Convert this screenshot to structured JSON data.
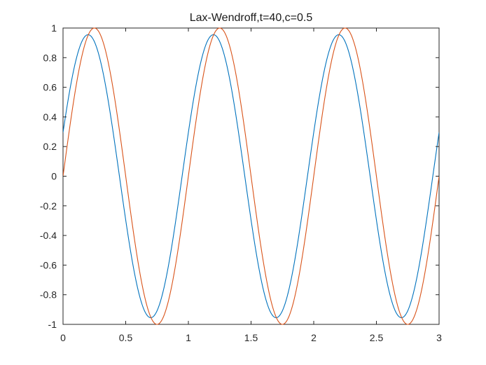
{
  "chart_data": {
    "type": "line",
    "title": "Lax-Wendroff,t=40,c=0.5",
    "xlabel": "",
    "ylabel": "",
    "xlim": [
      0,
      3
    ],
    "ylim": [
      -1,
      1
    ],
    "xticks": [
      "0",
      "0.5",
      "1",
      "1.5",
      "2",
      "2.5",
      "3"
    ],
    "yticks": [
      "1",
      "0.8",
      "0.6",
      "0.4",
      "0.2",
      "0",
      "-0.2",
      "-0.4",
      "-0.6",
      "-0.8",
      "-1"
    ],
    "grid": false,
    "legend": "none",
    "series": [
      {
        "color": "#0072BD",
        "function": "y = 0.955*sin(2*pi*(x+0.05))",
        "x": [
          0,
          0.05,
          0.1,
          0.15,
          0.2,
          0.25,
          0.3,
          0.35,
          0.4,
          0.45,
          0.5,
          0.55,
          0.6,
          0.65,
          0.7,
          0.75,
          0.8,
          0.85,
          0.9,
          0.95,
          1.0,
          1.05,
          1.1,
          1.15,
          1.2,
          1.25,
          1.3,
          1.35,
          1.4,
          1.45,
          1.5,
          1.55,
          1.6,
          1.65,
          1.7,
          1.75,
          1.8,
          1.85,
          1.9,
          1.95,
          2.0,
          2.05,
          2.1,
          2.15,
          2.2,
          2.25,
          2.3,
          2.35,
          2.4,
          2.45,
          2.5,
          2.55,
          2.6,
          2.65,
          2.7,
          2.75,
          2.8,
          2.85,
          2.9,
          2.95,
          3.0
        ],
        "y": [
          0.295,
          0.561,
          0.773,
          0.908,
          0.955,
          0.908,
          0.773,
          0.561,
          0.295,
          0,
          -0.295,
          -0.561,
          -0.773,
          -0.908,
          -0.955,
          -0.908,
          -0.773,
          -0.561,
          -0.295,
          0,
          0.295,
          0.561,
          0.773,
          0.908,
          0.955,
          0.908,
          0.773,
          0.561,
          0.295,
          0,
          -0.295,
          -0.561,
          -0.773,
          -0.908,
          -0.955,
          -0.908,
          -0.773,
          -0.561,
          -0.295,
          0,
          0.295,
          0.561,
          0.773,
          0.908,
          0.955,
          0.908,
          0.773,
          0.561,
          0.295,
          0,
          -0.295,
          -0.561,
          -0.773,
          -0.908,
          -0.955,
          -0.908,
          -0.773,
          -0.561,
          -0.295,
          0,
          0.295
        ]
      },
      {
        "color": "#D95319",
        "function": "y = sin(2*pi*x)",
        "x": [
          0,
          0.05,
          0.1,
          0.15,
          0.2,
          0.25,
          0.3,
          0.35,
          0.4,
          0.45,
          0.5,
          0.55,
          0.6,
          0.65,
          0.7,
          0.75,
          0.8,
          0.85,
          0.9,
          0.95,
          1.0,
          1.05,
          1.1,
          1.15,
          1.2,
          1.25,
          1.3,
          1.35,
          1.4,
          1.45,
          1.5,
          1.55,
          1.6,
          1.65,
          1.7,
          1.75,
          1.8,
          1.85,
          1.9,
          1.95,
          2.0,
          2.05,
          2.1,
          2.15,
          2.2,
          2.25,
          2.3,
          2.35,
          2.4,
          2.45,
          2.5,
          2.55,
          2.6,
          2.65,
          2.7,
          2.75,
          2.8,
          2.85,
          2.9,
          2.95,
          3.0
        ],
        "y": [
          0,
          0.309,
          0.588,
          0.809,
          0.951,
          1,
          0.951,
          0.809,
          0.588,
          0.309,
          0,
          -0.309,
          -0.588,
          -0.809,
          -0.951,
          -1,
          -0.951,
          -0.809,
          -0.588,
          -0.309,
          0,
          0.309,
          0.588,
          0.809,
          0.951,
          1,
          0.951,
          0.809,
          0.588,
          0.309,
          0,
          -0.309,
          -0.588,
          -0.809,
          -0.951,
          -1,
          -0.951,
          -0.809,
          -0.588,
          -0.309,
          0,
          0.309,
          0.588,
          0.809,
          0.951,
          1,
          0.951,
          0.809,
          0.588,
          0.309,
          0,
          -0.309,
          -0.588,
          -0.809,
          -0.951,
          -1,
          -0.951,
          -0.809,
          -0.588,
          -0.309,
          0
        ]
      }
    ]
  }
}
